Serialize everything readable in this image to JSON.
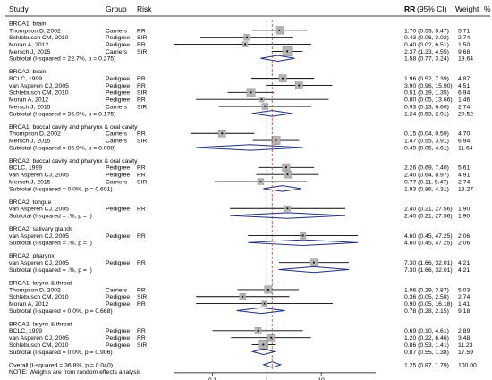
{
  "chart_data": {
    "type": "forest",
    "columns": {
      "study": "Study",
      "group": "Group",
      "risk": "Risk",
      "effect": "RR",
      "effect_ci": "(95% CI)",
      "weight": "Weight",
      "weight_unit": "%"
    },
    "x_scale": "log",
    "x_ticks": [
      {
        "value": 0.1,
        "label": "0.1"
      },
      {
        "value": 1,
        "label": "1"
      },
      {
        "value": 10,
        "label": "10"
      }
    ],
    "reference_line": 1,
    "overall_line": 1.25,
    "colors": {
      "study_box": "#b4b4b4",
      "diamond": "#1c2f7a",
      "overall_dash": "#c0392b",
      "text": "#000000"
    },
    "rows": [
      {
        "kind": "header",
        "study": "BRCA1, brain"
      },
      {
        "kind": "study",
        "study": "Thompson D, 2002",
        "group": "Carriers",
        "risk": "RR",
        "rr": 1.7,
        "lo": 0.53,
        "hi": 5.47,
        "ci": "1.70 (0.53, 5.47)",
        "weight": "5.71"
      },
      {
        "kind": "study",
        "study": "Schlebusch CM, 2010",
        "group": "Pedigree",
        "risk": "SIR",
        "rr": 0.43,
        "lo": 0.06,
        "hi": 3.02,
        "ci": "0.43 (0.06, 3.02)",
        "weight": "2.74"
      },
      {
        "kind": "study",
        "study": "Moran A, 2012",
        "group": "Pedigree",
        "risk": "RR",
        "rr": 0.4,
        "lo": 0.02,
        "hi": 6.51,
        "ci": "0.40 (0.02, 6.51)",
        "weight": "1.50"
      },
      {
        "kind": "study",
        "study": "Mersch J, 2015",
        "group": "Carriers",
        "risk": "SIR",
        "rr": 2.37,
        "lo": 1.23,
        "hi": 4.55,
        "ci": "2.37 (1.23, 4.55)",
        "weight": "9.68"
      },
      {
        "kind": "subtotal",
        "study": "Subtotal  (I-squared = 22.7%, p = 0.275)",
        "rr": 1.58,
        "lo": 0.77,
        "hi": 3.24,
        "ci": "1.58 (0.77, 3.24)",
        "weight": "19.64"
      },
      {
        "kind": "gap"
      },
      {
        "kind": "header",
        "study": "BRCA2, brain"
      },
      {
        "kind": "study",
        "study": "BCLC, 1999",
        "group": "Pedigree",
        "risk": "RR",
        "rr": 1.96,
        "lo": 0.52,
        "hi": 7.39,
        "ci": "1.96 (0.52, 7.39)",
        "weight": "4.87"
      },
      {
        "kind": "study",
        "study": "van Asperen CJ, 2005",
        "group": "Pedigree",
        "risk": "RR",
        "rr": 3.9,
        "lo": 0.96,
        "hi": 15.9,
        "ci": "3.90 (0.96, 15.90)",
        "weight": "4.51"
      },
      {
        "kind": "study",
        "study": "Schlebusch CM, 2010",
        "group": "Pedigree",
        "risk": "SIR",
        "rr": 0.51,
        "lo": 0.19,
        "hi": 1.35,
        "ci": "0.51 (0.19, 1.35)",
        "weight": "6.94"
      },
      {
        "kind": "study",
        "study": "Moran A, 2012",
        "group": "Pedigree",
        "risk": "RR",
        "rr": 0.8,
        "lo": 0.05,
        "hi": 13.66,
        "ci": "0.80 (0.05, 13.66)",
        "weight": "1.46"
      },
      {
        "kind": "study",
        "study": "Mersch J, 2015",
        "group": "Carriers",
        "risk": "SIR",
        "rr": 0.93,
        "lo": 0.13,
        "hi": 6.6,
        "ci": "0.93 (0.13, 6.60)",
        "weight": "2.74"
      },
      {
        "kind": "subtotal",
        "study": "Subtotal  (I-squared = 36.9%, p = 0.175)",
        "rr": 1.24,
        "lo": 0.53,
        "hi": 2.91,
        "ci": "1.24 (0.53, 2.91)",
        "weight": "20.52"
      },
      {
        "kind": "gap"
      },
      {
        "kind": "header",
        "study": "BRCA1, buccal cavity and pharynx & oral cavity"
      },
      {
        "kind": "study",
        "study": "Thompson D, 2002",
        "group": "Carriers",
        "risk": "RR",
        "rr": 0.15,
        "lo": 0.04,
        "hi": 0.59,
        "ci": "0.15 (0.04, 0.59)",
        "weight": "4.70"
      },
      {
        "kind": "study",
        "study": "Mersch J, 2015",
        "group": "Carriers",
        "risk": "SIR",
        "rr": 1.47,
        "lo": 0.55,
        "hi": 3.91,
        "ci": "1.47 (0.55, 3.91)",
        "weight": "6.94"
      },
      {
        "kind": "subtotal",
        "study": "Subtotal  (I-squared = 85.9%, p = 0.008)",
        "rr": 0.49,
        "lo": 0.05,
        "hi": 4.61,
        "ci": "0.49 (0.05, 4.61)",
        "weight": "11.64"
      },
      {
        "kind": "gap"
      },
      {
        "kind": "header",
        "study": "BRCA2, buccal cavity and pharynx & oral cavity"
      },
      {
        "kind": "study",
        "study": "BCLC, 1999",
        "group": "Pedigree",
        "risk": "RR",
        "rr": 2.26,
        "lo": 0.69,
        "hi": 7.4,
        "ci": "2.26 (0.69, 7.40)",
        "weight": "5.61"
      },
      {
        "kind": "study",
        "study": "van Asperen CJ, 2005",
        "group": "Pedigree",
        "risk": "RR",
        "rr": 2.4,
        "lo": 0.64,
        "hi": 8.97,
        "ci": "2.40 (0.64, 8.97)",
        "weight": "4.91"
      },
      {
        "kind": "study",
        "study": "Mersch J, 2015",
        "group": "Carriers",
        "risk": "SIR",
        "rr": 0.77,
        "lo": 0.11,
        "hi": 5.47,
        "ci": "0.77 (0.11, 5.47)",
        "weight": "2.74"
      },
      {
        "kind": "subtotal",
        "study": "Subtotal  (I-squared = 0.0%, p = 0.601)",
        "rr": 1.93,
        "lo": 0.86,
        "hi": 4.31,
        "ci": "1.93 (0.86, 4.31)",
        "weight": "13.27"
      },
      {
        "kind": "gap"
      },
      {
        "kind": "header",
        "study": "BRCA2, tongue"
      },
      {
        "kind": "study",
        "study": "van Asperen CJ, 2005",
        "group": "Pedigree",
        "risk": "RR",
        "rr": 2.4,
        "lo": 0.21,
        "hi": 27.56,
        "ci": "2.40 (0.21, 27.56)",
        "weight": "1.90"
      },
      {
        "kind": "subtotal",
        "study": "Subtotal  (I-squared = .%, p = .)",
        "rr": 2.4,
        "lo": 0.21,
        "hi": 27.56,
        "ci": "2.40 (0.21, 27.56)",
        "weight": "1.90"
      },
      {
        "kind": "gap"
      },
      {
        "kind": "header",
        "study": "BRCA2, salivary glands"
      },
      {
        "kind": "study",
        "study": "van Asperen CJ, 2005",
        "group": "Pedigree",
        "risk": "RR",
        "rr": 4.6,
        "lo": 0.45,
        "hi": 47.25,
        "ci": "4.60 (0.45, 47.25)",
        "weight": "2.06"
      },
      {
        "kind": "subtotal",
        "study": "Subtotal  (I-squared = .%, p = .)",
        "rr": 4.6,
        "lo": 0.45,
        "hi": 47.25,
        "ci": "4.60 (0.45, 47.25)",
        "weight": "2.06"
      },
      {
        "kind": "gap"
      },
      {
        "kind": "header",
        "study": "BRCA2, pharynx"
      },
      {
        "kind": "study",
        "study": "van Asperen CJ, 2005",
        "group": "Pedigree",
        "risk": "RR",
        "rr": 7.3,
        "lo": 1.66,
        "hi": 32.01,
        "ci": "7.30 (1.66, 32.01)",
        "weight": "4.21"
      },
      {
        "kind": "subtotal",
        "study": "Subtotal  (I-squared = .%, p = .)",
        "rr": 7.3,
        "lo": 1.66,
        "hi": 32.01,
        "ci": "7.30 (1.66, 32.01)",
        "weight": "4.21"
      },
      {
        "kind": "gap"
      },
      {
        "kind": "header",
        "study": "BRCA1, larynx & throat"
      },
      {
        "kind": "study",
        "study": "Thompson D, 2002",
        "group": "Carriers",
        "risk": "RR",
        "rr": 1.06,
        "lo": 0.29,
        "hi": 3.87,
        "ci": "1.06 (0.29, 3.87)",
        "weight": "5.03"
      },
      {
        "kind": "study",
        "study": "Schlebusch CM, 2010",
        "group": "Pedigree",
        "risk": "SIR",
        "rr": 0.36,
        "lo": 0.05,
        "hi": 2.58,
        "ci": "0.36 (0.05, 2.58)",
        "weight": "2.74"
      },
      {
        "kind": "study",
        "study": "Moran A, 2012",
        "group": "Pedigree",
        "risk": "RR",
        "rr": 0.9,
        "lo": 0.05,
        "hi": 16.18,
        "ci": "0.90 (0.05, 16.18)",
        "weight": "1.41"
      },
      {
        "kind": "subtotal",
        "study": "Subtotal  (I-squared = 0.0%, p = 0.668)",
        "rr": 0.78,
        "lo": 0.28,
        "hi": 2.15,
        "ci": "0.78 (0.28, 2.15)",
        "weight": "9.18"
      },
      {
        "kind": "gap"
      },
      {
        "kind": "header",
        "study": "BRCA2, larynx & throat"
      },
      {
        "kind": "study",
        "study": "BCLC, 1999",
        "group": "Pedigree",
        "risk": "RR",
        "rr": 0.69,
        "lo": 0.1,
        "hi": 4.61,
        "ci": "0.69 (0.10, 4.61)",
        "weight": "2.89"
      },
      {
        "kind": "study",
        "study": "van Asperen CJ, 2005",
        "group": "Pedigree",
        "risk": "RR",
        "rr": 1.2,
        "lo": 0.22,
        "hi": 6.46,
        "ci": "1.20 (0.22, 6.46)",
        "weight": "3.48"
      },
      {
        "kind": "study",
        "study": "Schlebusch CM, 2010",
        "group": "Pedigree",
        "risk": "SIR",
        "rr": 0.86,
        "lo": 0.53,
        "hi": 1.41,
        "ci": "0.86 (0.53, 1.41)",
        "weight": "11.23"
      },
      {
        "kind": "subtotal",
        "study": "Subtotal  (I-squared = 0.0%, p = 0.906)",
        "rr": 0.87,
        "lo": 0.55,
        "hi": 1.38,
        "ci": "0.87 (0.55, 1.38)",
        "weight": "17.59"
      },
      {
        "kind": "gap"
      },
      {
        "kind": "overall",
        "study": "Overall  (I-squared = 36.8%, p = 0.040)",
        "rr": 1.25,
        "lo": 0.87,
        "hi": 1.79,
        "ci": "1.25 (0.87, 1.79)",
        "weight": "100.00"
      },
      {
        "kind": "note",
        "study": "NOTE: Weights are from random effects analysis"
      }
    ]
  }
}
